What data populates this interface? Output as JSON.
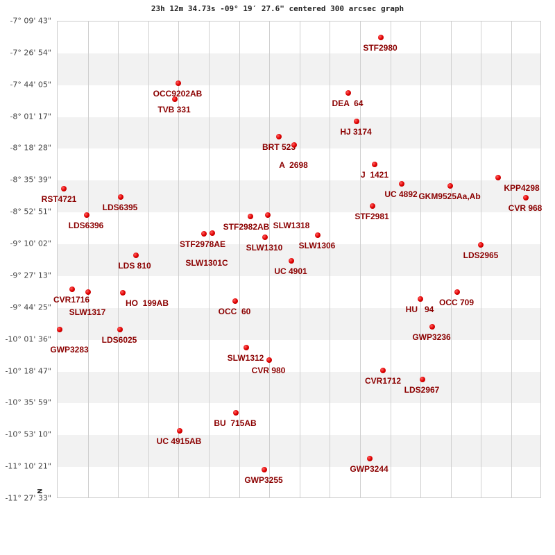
{
  "chart_data": {
    "type": "scatter",
    "title": "23h 12m 34.73s -09° 19′ 27.6\" centered 300 arcsec graph",
    "y_tick_labels": [
      "-7° 09' 43\"",
      "-7° 26' 54\"",
      "-7° 44' 05\"",
      "-8° 01' 17\"",
      "-8° 18' 28\"",
      "-8° 35' 39\"",
      "-8° 52' 51\"",
      "-9° 10' 02\"",
      "-9° 27' 13\"",
      "-9° 44' 25\"",
      "-10° 01' 36\"",
      "-10° 18' 47\"",
      "-10° 35' 59\"",
      "-10° 53' 10\"",
      "-11° 10' 21\"",
      "-11° 27' 33\""
    ],
    "orientation_label": "N",
    "grid": true,
    "point_color": "#e00000",
    "label_color": "#8b0000",
    "stars": [
      "STF2980",
      "OCC9202AB",
      "TVB 331",
      "DEA  64",
      "HJ 3174",
      "BRT 523",
      "A  2698",
      "J  1421",
      "UC 4892",
      "GKM9525Aa,Ab",
      "KPP4298",
      "CVR 968",
      "RST4721",
      "LDS6395",
      "LDS6396",
      "STF2981",
      "STF2982AB",
      "SLW1318",
      "SLW1310",
      "SLW1306",
      "UC 4901",
      "LDS2965",
      "LDS 810",
      "STF2978AE",
      "SLW1301C",
      "CVR1716",
      "SLW1317",
      "HO  199AB",
      "OCC  60",
      "HU   94",
      "OCC 709",
      "GWP3236",
      "GWP3283",
      "LDS6025",
      "SLW1312",
      "CVR 980",
      "CVR1712",
      "LDS2967",
      "BU  715AB",
      "UC 4915AB",
      "GWP3244",
      "GWP3255"
    ]
  }
}
